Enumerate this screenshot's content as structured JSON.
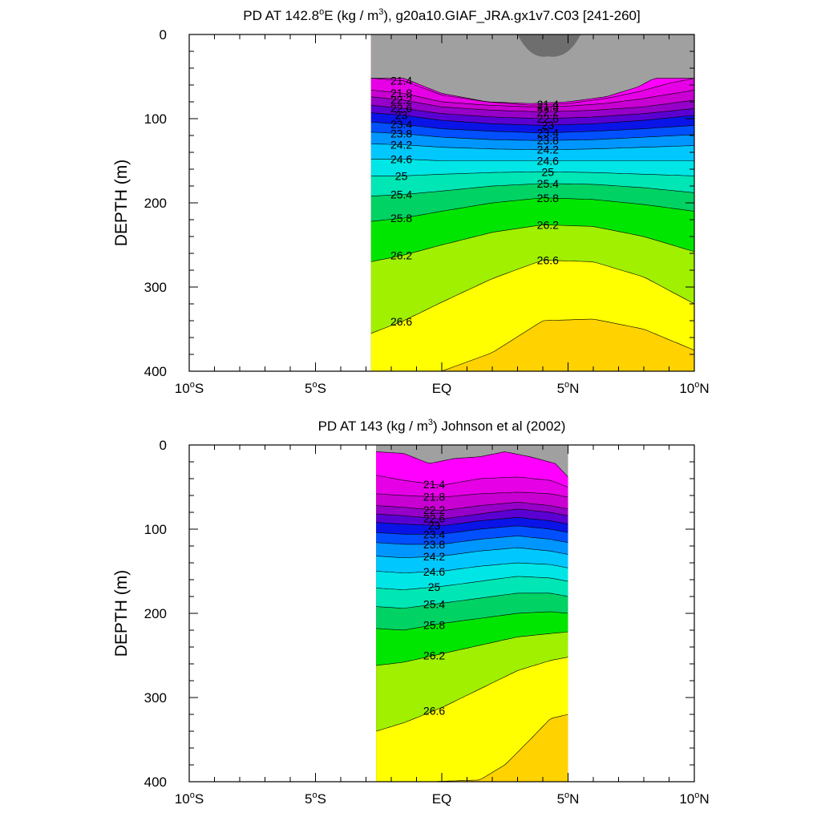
{
  "chart_data": [
    {
      "type": "contour",
      "title": "PD AT 142.8°E (kg / m³), g20a10.GIAF_JRA.gx1v7.C03 [241-260]",
      "title_parts": {
        "pre": "PD AT 142.8",
        "deg": "o",
        "mid": "E (kg / m",
        "sup": "3",
        "post": "), g20a10.GIAF_JRA.gx1v7.C03 [241-260]"
      },
      "ylabel": "DEPTH (m)",
      "xlabel": "",
      "xlim": [
        -10,
        10
      ],
      "ylim": [
        0,
        400
      ],
      "y_inverted": true,
      "x_ticks": [
        {
          "v": -10,
          "num": "10",
          "deg": "o",
          "hemi": "S"
        },
        {
          "v": -5,
          "num": "5",
          "deg": "o",
          "hemi": "S"
        },
        {
          "v": 0,
          "num": "EQ",
          "deg": "",
          "hemi": ""
        },
        {
          "v": 5,
          "num": "5",
          "deg": "o",
          "hemi": "N"
        },
        {
          "v": 10,
          "num": "10",
          "deg": "o",
          "hemi": "N"
        }
      ],
      "y_ticks": [
        0,
        100,
        200,
        300,
        400
      ],
      "data_extent_lat": [
        -2.8,
        10
      ],
      "surface_layer": {
        "lat": [
          -2.8,
          -1.5,
          0,
          1.8,
          3.5,
          5,
          6.5,
          7.8,
          8.4,
          10
        ],
        "depth": [
          52,
          52,
          70,
          80,
          82,
          80,
          74,
          62,
          52,
          52
        ]
      },
      "isopycnals": [
        {
          "density": "21.4",
          "lat": [
            -2.8,
            -1.5,
            0,
            1.8,
            3.5,
            5,
            6.5,
            7.8,
            9,
            10
          ],
          "depth": [
            52,
            55,
            72,
            80,
            84,
            82,
            76,
            68,
            58,
            52
          ]
        },
        {
          "density": "21.8",
          "lat": [
            -2.8,
            -1.5,
            0,
            1.8,
            3.5,
            5,
            6.5,
            8,
            10
          ],
          "depth": [
            66,
            70,
            80,
            84,
            86,
            85,
            82,
            76,
            66
          ]
        },
        {
          "density": "22.2",
          "lat": [
            -2.8,
            -1.5,
            0,
            2,
            4,
            6,
            8,
            10
          ],
          "depth": [
            74,
            78,
            86,
            90,
            92,
            90,
            86,
            78
          ]
        },
        {
          "density": "22.6",
          "lat": [
            -2.8,
            -1.5,
            0,
            2,
            4,
            6,
            8,
            10
          ],
          "depth": [
            84,
            88,
            94,
            98,
            100,
            98,
            94,
            88
          ]
        },
        {
          "density": "23",
          "lat": [
            -2.8,
            -1.5,
            0,
            2,
            4,
            6,
            8,
            10
          ],
          "depth": [
            93,
            96,
            102,
            106,
            108,
            106,
            102,
            96
          ]
        },
        {
          "density": "23.4",
          "lat": [
            -2.8,
            -1.5,
            0,
            2,
            4,
            6,
            8,
            10
          ],
          "depth": [
            104,
            107,
            112,
            115,
            117,
            115,
            112,
            108
          ]
        },
        {
          "density": "23.8",
          "lat": [
            -2.8,
            -1.5,
            0,
            2,
            4,
            6,
            8,
            10
          ],
          "depth": [
            116,
            118,
            122,
            125,
            126,
            125,
            122,
            119
          ]
        },
        {
          "density": "24.2",
          "lat": [
            -2.8,
            -1.5,
            0,
            2,
            4,
            6,
            8,
            10
          ],
          "depth": [
            130,
            131,
            134,
            136,
            137,
            136,
            134,
            132
          ]
        },
        {
          "density": "24.6",
          "lat": [
            -2.8,
            -1.5,
            0,
            2,
            4,
            6,
            8,
            10
          ],
          "depth": [
            148,
            148,
            150,
            150,
            150,
            150,
            150,
            150
          ]
        },
        {
          "density": "25",
          "lat": [
            -2.8,
            -1.5,
            0,
            2,
            4,
            6,
            8,
            10
          ],
          "depth": [
            168,
            168,
            166,
            164,
            163,
            164,
            166,
            168
          ]
        },
        {
          "density": "25.4",
          "lat": [
            -2.8,
            -1.5,
            0,
            2,
            4,
            6,
            8,
            10
          ],
          "depth": [
            192,
            190,
            186,
            180,
            177,
            178,
            182,
            188
          ]
        },
        {
          "density": "25.8",
          "lat": [
            -2.8,
            -1.5,
            0,
            2,
            4,
            6,
            8,
            10
          ],
          "depth": [
            222,
            218,
            210,
            200,
            194,
            196,
            202,
            210
          ]
        },
        {
          "density": "26.2",
          "lat": [
            -2.8,
            -1.5,
            0,
            2,
            4,
            6,
            8,
            10
          ],
          "depth": [
            270,
            262,
            250,
            235,
            226,
            228,
            240,
            258
          ]
        },
        {
          "density": "26.6",
          "lat": [
            -2.8,
            -1.5,
            0,
            2,
            4,
            6,
            8,
            10
          ],
          "depth": [
            355,
            340,
            318,
            290,
            268,
            270,
            288,
            320
          ]
        },
        {
          "density": "",
          "lat": [
            -2.8,
            0,
            2,
            4,
            6,
            8,
            10
          ],
          "depth": [
            400,
            400,
            378,
            340,
            338,
            350,
            375
          ]
        }
      ]
    },
    {
      "type": "contour",
      "title": "PD AT 143 (kg / m³) Johnson et al (2002)",
      "title_parts": {
        "pre": "PD AT 143 (kg / m",
        "deg": "",
        "mid": "",
        "sup": "3",
        "post": ") Johnson et al (2002)"
      },
      "ylabel": "DEPTH (m)",
      "xlabel": "",
      "xlim": [
        -10,
        10
      ],
      "ylim": [
        0,
        400
      ],
      "y_inverted": true,
      "x_ticks": [
        {
          "v": -10,
          "num": "10",
          "deg": "o",
          "hemi": "S"
        },
        {
          "v": -5,
          "num": "5",
          "deg": "o",
          "hemi": "S"
        },
        {
          "v": 0,
          "num": "EQ",
          "deg": "",
          "hemi": ""
        },
        {
          "v": 5,
          "num": "5",
          "deg": "o",
          "hemi": "N"
        },
        {
          "v": 10,
          "num": "10",
          "deg": "o",
          "hemi": "N"
        }
      ],
      "y_ticks": [
        0,
        100,
        200,
        300,
        400
      ],
      "data_extent_lat": [
        -2.6,
        5
      ],
      "surface_layer": {
        "lat": [
          -2.6,
          -1.5,
          -0.5,
          0.5,
          1.5,
          2.5,
          3.5,
          4.5,
          5
        ],
        "depth": [
          8,
          10,
          22,
          16,
          14,
          8,
          14,
          22,
          38
        ]
      },
      "isopycnals": [
        {
          "density": "21.4",
          "lat": [
            -2.6,
            -1.5,
            0,
            1.5,
            3,
            4.3,
            5
          ],
          "depth": [
            36,
            42,
            48,
            40,
            38,
            42,
            50
          ]
        },
        {
          "density": "21.8",
          "lat": [
            -2.6,
            -1.5,
            0,
            1.5,
            3,
            4.3,
            5
          ],
          "depth": [
            58,
            60,
            62,
            58,
            56,
            58,
            62
          ]
        },
        {
          "density": "22.2",
          "lat": [
            -2.6,
            -1.5,
            0,
            1.5,
            3,
            4.3,
            5
          ],
          "depth": [
            72,
            74,
            78,
            72,
            68,
            72,
            76
          ]
        },
        {
          "density": "22.6",
          "lat": [
            -2.6,
            -1.5,
            0,
            1.5,
            3,
            4.3,
            5
          ],
          "depth": [
            82,
            84,
            88,
            82,
            76,
            80,
            84
          ]
        },
        {
          "density": "23",
          "lat": [
            -2.6,
            -1.5,
            0,
            1.5,
            3,
            4.3,
            5
          ],
          "depth": [
            92,
            94,
            96,
            90,
            86,
            90,
            94
          ]
        },
        {
          "density": "23.4",
          "lat": [
            -2.6,
            -1.5,
            0,
            1.5,
            3,
            4.3,
            5
          ],
          "depth": [
            104,
            106,
            106,
            100,
            96,
            100,
            104
          ]
        },
        {
          "density": "23.8",
          "lat": [
            -2.6,
            -1.5,
            0,
            1.5,
            3,
            4.3,
            5
          ],
          "depth": [
            116,
            118,
            118,
            112,
            108,
            112,
            116
          ]
        },
        {
          "density": "24.2",
          "lat": [
            -2.6,
            -1.5,
            0,
            1.5,
            3,
            4.3,
            5
          ],
          "depth": [
            132,
            134,
            132,
            126,
            122,
            126,
            130
          ]
        },
        {
          "density": "24.6",
          "lat": [
            -2.6,
            -1.5,
            0,
            1.5,
            3,
            4.3,
            5
          ],
          "depth": [
            150,
            152,
            150,
            144,
            140,
            142,
            146
          ]
        },
        {
          "density": "25",
          "lat": [
            -2.6,
            -1.5,
            0,
            1.5,
            3,
            4.3,
            5
          ],
          "depth": [
            170,
            172,
            168,
            162,
            156,
            158,
            162
          ]
        },
        {
          "density": "25.4",
          "lat": [
            -2.6,
            -1.5,
            0,
            1.5,
            3,
            4.3,
            5
          ],
          "depth": [
            192,
            194,
            188,
            182,
            176,
            176,
            180
          ]
        },
        {
          "density": "25.8",
          "lat": [
            -2.6,
            -1.5,
            0,
            1.5,
            3,
            4.3,
            5
          ],
          "depth": [
            218,
            220,
            212,
            206,
            200,
            198,
            200
          ]
        },
        {
          "density": "26.2",
          "lat": [
            -2.6,
            -1.5,
            0,
            1.5,
            3,
            4.3,
            5
          ],
          "depth": [
            262,
            258,
            248,
            238,
            228,
            224,
            222
          ]
        },
        {
          "density": "26.6",
          "lat": [
            -2.6,
            -1.5,
            0,
            1.5,
            3,
            4.3,
            5
          ],
          "depth": [
            340,
            330,
            312,
            290,
            268,
            256,
            252
          ]
        },
        {
          "density": "",
          "lat": [
            -2.6,
            -0.5,
            1.5,
            2.5,
            3.5,
            4.3,
            5
          ],
          "depth": [
            400,
            400,
            398,
            380,
            350,
            325,
            320
          ]
        }
      ]
    }
  ]
}
